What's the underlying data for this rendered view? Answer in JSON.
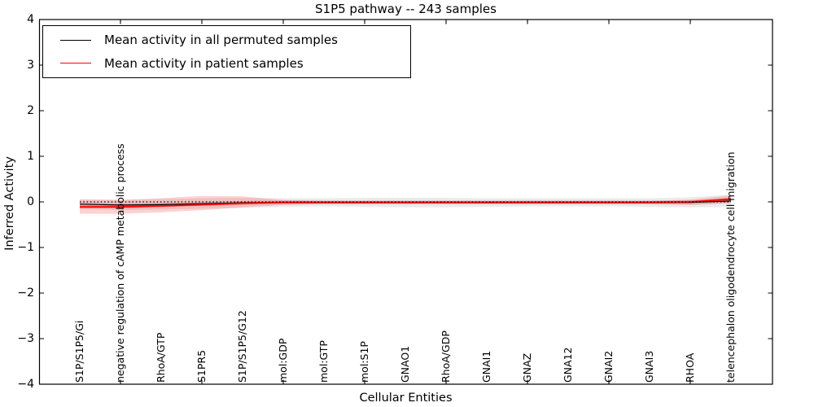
{
  "figure": {
    "title": "S1P5 pathway -- 243 samples",
    "xlabel": "Cellular Entities",
    "ylabel": "Inferred Activity"
  },
  "legend": {
    "items": [
      {
        "label": "Mean activity in all permuted samples",
        "color": "#000000"
      },
      {
        "label": "Mean activity in patient samples",
        "color": "#ff0000"
      }
    ]
  },
  "chart_data": {
    "type": "line",
    "title": "S1P5 pathway -- 243 samples",
    "xlabel": "Cellular Entities",
    "ylabel": "Inferred Activity",
    "ylim": [
      -4,
      4
    ],
    "grid": false,
    "legend_position": "upper left",
    "background_color": "#ffffff",
    "axis_color": "#000000",
    "yticks": [
      {
        "label": "4",
        "value": 4
      },
      {
        "label": "3",
        "value": 3
      },
      {
        "label": "2",
        "value": 2
      },
      {
        "label": "1",
        "value": 1
      },
      {
        "label": "0",
        "value": 0
      },
      {
        "label": "−1",
        "value": -1
      },
      {
        "label": "−2",
        "value": -2
      },
      {
        "label": "−3",
        "value": -3
      },
      {
        "label": "−4",
        "value": -4
      }
    ],
    "xtick_major_indices": [
      1,
      3,
      5,
      7,
      9,
      11,
      13,
      15
    ],
    "categories": [
      "S1P/S1P5/Gi",
      "negative regulation of cAMP metabolic process",
      "RhoA/GTP",
      "S1PR5",
      "S1P/S1P5/G12",
      "mol:GDP",
      "mol:GTP",
      "mol:S1P",
      "GNAO1",
      "RhoA/GDP",
      "GNAI1",
      "GNAZ",
      "GNA12",
      "GNAI2",
      "GNAI3",
      "RHOA",
      "telencephalon oligodendrocyte cell migration"
    ],
    "series": [
      {
        "name": "Mean activity in all permuted samples",
        "color": "#000000",
        "width": 1.2,
        "values": [
          -0.05,
          -0.07,
          -0.06,
          -0.04,
          -0.02,
          -0.01,
          -0.01,
          -0.01,
          -0.01,
          -0.01,
          -0.01,
          -0.01,
          -0.01,
          -0.01,
          -0.01,
          -0.01,
          0.02
        ]
      },
      {
        "name": "Mean activity in patient samples",
        "color": "#ff0000",
        "width": 1.6,
        "values": [
          -0.11,
          -0.11,
          -0.09,
          -0.06,
          -0.03,
          -0.01,
          -0.01,
          -0.01,
          -0.01,
          -0.01,
          -0.01,
          -0.01,
          -0.01,
          -0.01,
          -0.01,
          0.0,
          0.06
        ]
      }
    ],
    "bands": [
      {
        "name": "permuted-std-band",
        "color": "rgba(0,0,0,0.08)",
        "upper": [
          0.06,
          0.05,
          0.06,
          0.08,
          0.09,
          0.08,
          0.08,
          0.09,
          0.09,
          0.09,
          0.08,
          0.08,
          0.08,
          0.08,
          0.08,
          0.1,
          0.16
        ],
        "lower": [
          -0.16,
          -0.18,
          -0.17,
          -0.15,
          -0.13,
          -0.11,
          -0.1,
          -0.11,
          -0.12,
          -0.12,
          -0.11,
          -0.1,
          -0.1,
          -0.1,
          -0.11,
          -0.12,
          -0.11
        ]
      },
      {
        "name": "permuted-sem-band",
        "color": "rgba(0,0,0,0.10)",
        "upper": [
          -0.01,
          -0.03,
          -0.02,
          0.0,
          0.02,
          0.03,
          0.03,
          0.03,
          0.03,
          0.03,
          0.03,
          0.03,
          0.03,
          0.03,
          0.03,
          0.03,
          0.06
        ],
        "lower": [
          -0.09,
          -0.11,
          -0.1,
          -0.08,
          -0.06,
          -0.05,
          -0.05,
          -0.05,
          -0.05,
          -0.05,
          -0.05,
          -0.05,
          -0.05,
          -0.05,
          -0.05,
          -0.05,
          -0.02
        ]
      },
      {
        "name": "patient-std-band",
        "color": "rgba(255,0,0,0.18)",
        "upper": [
          0.05,
          0.04,
          0.08,
          0.13,
          0.12,
          0.04,
          0.02,
          0.02,
          0.02,
          0.02,
          0.02,
          0.02,
          0.02,
          0.02,
          0.02,
          0.05,
          0.14
        ],
        "lower": [
          -0.26,
          -0.26,
          -0.23,
          -0.18,
          -0.12,
          -0.07,
          -0.05,
          -0.05,
          -0.05,
          -0.05,
          -0.05,
          -0.05,
          -0.05,
          -0.05,
          -0.05,
          -0.07,
          -0.03
        ]
      },
      {
        "name": "patient-sem-band",
        "color": "rgba(255,0,0,0.45)",
        "upper": [
          -0.085,
          -0.085,
          -0.065,
          -0.035,
          -0.005,
          0.015,
          0.015,
          0.015,
          0.015,
          0.015,
          0.015,
          0.015,
          0.015,
          0.015,
          0.015,
          0.025,
          0.085
        ],
        "lower": [
          -0.135,
          -0.135,
          -0.115,
          -0.085,
          -0.055,
          -0.035,
          -0.035,
          -0.035,
          -0.035,
          -0.035,
          -0.035,
          -0.035,
          -0.035,
          -0.035,
          -0.035,
          -0.025,
          0.035
        ]
      }
    ],
    "zero_line": {
      "value": 0,
      "style": "dotted",
      "color": "#000000"
    }
  }
}
